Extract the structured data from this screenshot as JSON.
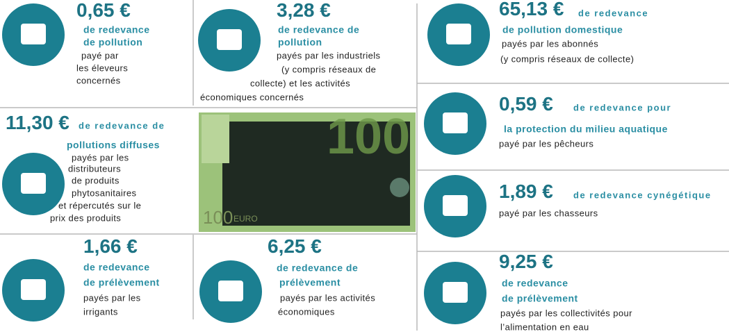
{
  "items": [
    {
      "amount": "0,65 €",
      "title": [
        "de redevance",
        "de pollution"
      ],
      "text": [
        "payé par",
        "les éleveurs",
        "concernés"
      ]
    },
    {
      "amount": "3,28 €",
      "title": [
        "de redevance de",
        "pollution"
      ],
      "text": [
        "payés par les industriels",
        "(y compris réseaux de",
        "collecte) et les activités",
        "économiques concernés"
      ]
    },
    {
      "amount": "65,13 €",
      "title": [
        "de redevance",
        "de pollution domestique"
      ],
      "text": [
        "payés par les abonnés",
        "(y compris réseaux de collecte)"
      ]
    },
    {
      "amount": "11,30 €",
      "title": [
        "de redevance de",
        "pollutions diffuses"
      ],
      "text": [
        "payés par les",
        "distributeurs",
        "de produits",
        "phytosanitaires",
        "et répercutés sur le",
        "prix des produits"
      ]
    },
    {
      "amount": "0,59 €",
      "title": [
        "de redevance pour",
        "la protection du milieu aquatique"
      ],
      "text": [
        "payé par les pêcheurs"
      ]
    },
    {
      "amount": "1,89 €",
      "title": [
        "de redevance cynégétique"
      ],
      "text": [
        "payé par les chasseurs"
      ]
    },
    {
      "amount": "1,66 €",
      "title": [
        "de redevance",
        "de prélèvement"
      ],
      "text": [
        "payés par les",
        "irrigants"
      ]
    },
    {
      "amount": "6,25 €",
      "title": [
        "de redevance de",
        "prélèvement"
      ],
      "text": [
        "payés par les activités",
        "économiques"
      ]
    },
    {
      "amount": "9,25 €",
      "title": [
        "de redevance",
        "de prélèvement"
      ],
      "text": [
        "payés par les collectivités  pour",
        "l’alimentation en eau"
      ]
    }
  ],
  "banknote": {
    "value": "100",
    "currency": "EURO"
  }
}
